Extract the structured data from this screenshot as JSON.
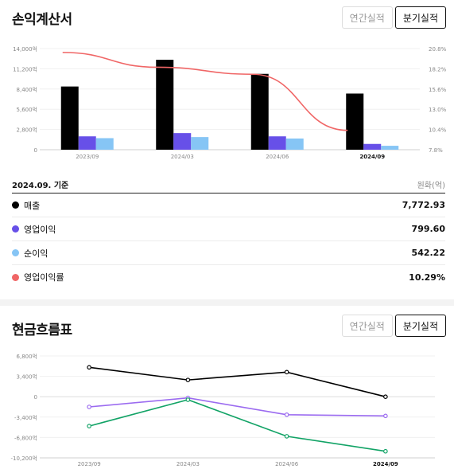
{
  "income": {
    "title": "손익계산서",
    "toggle": [
      "연간실적",
      "분기실적"
    ],
    "as_of": "2024.09. 기준",
    "unit": "원화(억)",
    "rows": [
      {
        "label": "매출",
        "value": "7,772.93",
        "color": "#000000"
      },
      {
        "label": "영업이익",
        "value": "799.60",
        "color": "#6750e8"
      },
      {
        "label": "순이익",
        "value": "542.22",
        "color": "#86c5f5"
      },
      {
        "label": "영업이익률",
        "value": "10.29%",
        "color": "#f06666"
      }
    ]
  },
  "cashflow": {
    "title": "현금흐름표",
    "toggle": [
      "연간실적",
      "분기실적"
    ]
  },
  "chart_data": [
    {
      "type": "bar",
      "categories": [
        "2023/09",
        "2024/03",
        "2024/06",
        "2024/09"
      ],
      "highlight_category": "2024/09",
      "ylim": [
        0,
        14000
      ],
      "y_ticks": [
        "14,000억",
        "11,200억",
        "8,400억",
        "5,600억",
        "2,800억",
        "0"
      ],
      "y2lim": [
        7.8,
        20.8
      ],
      "y2_ticks": [
        "20.8%",
        "18.2%",
        "15.6%",
        "13.0%",
        "10.4%",
        "7.8%"
      ],
      "series": [
        {
          "name": "매출",
          "color": "#000000",
          "values": [
            8750,
            12450,
            10500,
            7772.93
          ]
        },
        {
          "name": "영업이익",
          "color": "#6750e8",
          "values": [
            1850,
            2300,
            1850,
            799.6
          ]
        },
        {
          "name": "순이익",
          "color": "#86c5f5",
          "values": [
            1600,
            1750,
            1550,
            542.22
          ]
        },
        {
          "name": "영업이익률",
          "color": "#f06666",
          "line": true,
          "values": [
            20.3,
            18.4,
            17.5,
            10.29
          ]
        }
      ]
    },
    {
      "type": "line",
      "categories": [
        "2023/09",
        "2024/03",
        "2024/06",
        "2024/09"
      ],
      "highlight_category": "2024/09",
      "ylim": [
        -10200,
        6800
      ],
      "y_ticks": [
        "6,800억",
        "3,400억",
        "0",
        "-3,400억",
        "-6,800억",
        "-10,200억"
      ],
      "series": [
        {
          "color": "#000000",
          "values": [
            4900,
            2800,
            4100,
            0
          ]
        },
        {
          "color": "#9b6bf0",
          "values": [
            -1700,
            -200,
            -3000,
            -3200
          ]
        },
        {
          "color": "#12a366",
          "values": [
            -4900,
            -500,
            -6600,
            -9100
          ]
        }
      ]
    }
  ]
}
